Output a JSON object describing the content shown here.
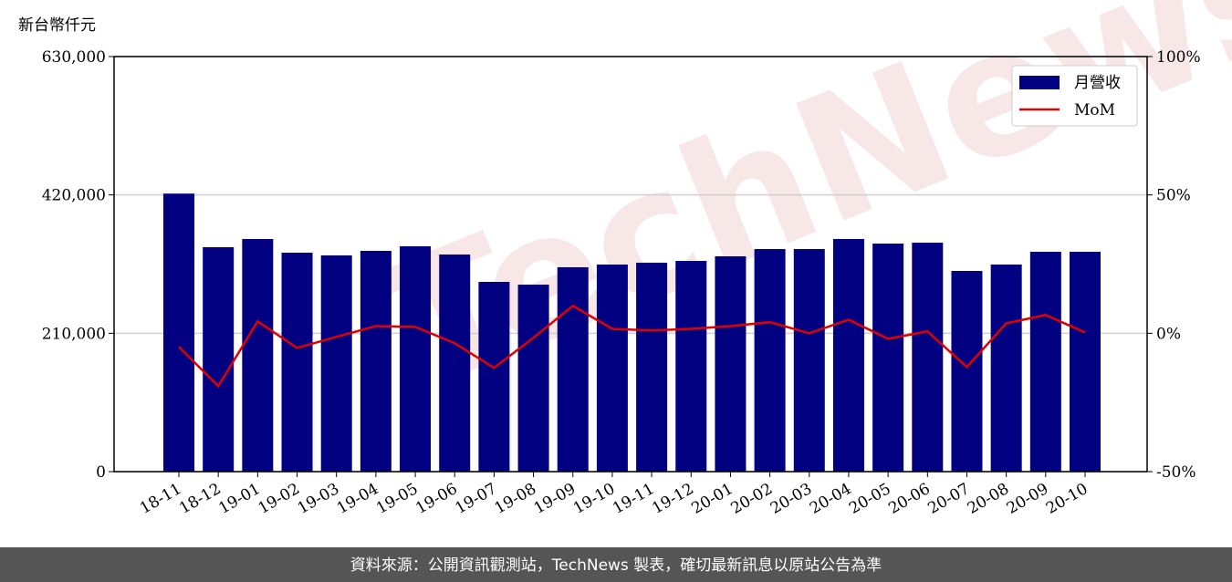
{
  "chart_data": {
    "type": "bar_line",
    "y_label": "新台幣仟元",
    "categories": [
      "18-11",
      "18-12",
      "19-01",
      "19-02",
      "19-03",
      "19-04",
      "19-05",
      "19-06",
      "19-07",
      "19-08",
      "19-09",
      "19-10",
      "19-11",
      "19-12",
      "20-01",
      "20-02",
      "20-03",
      "20-04",
      "20-05",
      "20-06",
      "20-07",
      "20-08",
      "20-09",
      "20-10"
    ],
    "series": [
      {
        "name": "月營收",
        "type": "bar",
        "color": "#000080",
        "values": [
          422000,
          340600,
          353100,
          332300,
          328200,
          335100,
          342000,
          329500,
          288000,
          283800,
          310200,
          314300,
          317100,
          319800,
          326800,
          337800,
          337800,
          353100,
          346100,
          347500,
          304600,
          314300,
          333700,
          333700
        ]
      },
      {
        "name": "MoM",
        "type": "line",
        "axis": "y2",
        "color": "#e00000",
        "values": [
          -4.9,
          -19.1,
          4.3,
          -5.3,
          -1.3,
          2.6,
          2.3,
          -3.6,
          -12.5,
          -1.6,
          9.9,
          1.6,
          1.0,
          1.6,
          2.6,
          4.0,
          0,
          4.9,
          -2.0,
          0.7,
          -12.2,
          3.6,
          6.6,
          0.3
        ]
      }
    ],
    "ylim": [
      0,
      630000
    ],
    "yticks": [
      0,
      {
        "value": 210000,
        "label": "210,000"
      },
      {
        "value": 420000,
        "label": "420,000"
      },
      {
        "value": 630000,
        "label": "630,000"
      }
    ],
    "y2lim": [
      -50,
      100
    ],
    "y2ticks": [
      {
        "value": -50,
        "label": "-50%"
      },
      {
        "value": 0,
        "label": "0%"
      },
      {
        "value": 50,
        "label": "50%"
      },
      {
        "value": 100,
        "label": "100%"
      }
    ],
    "grid": true,
    "legend": "upper right",
    "watermark": "TechNews",
    "footer": "資料來源：公開資訊觀測站，TechNews 製表，確切最新訊息以原站公告為準"
  }
}
